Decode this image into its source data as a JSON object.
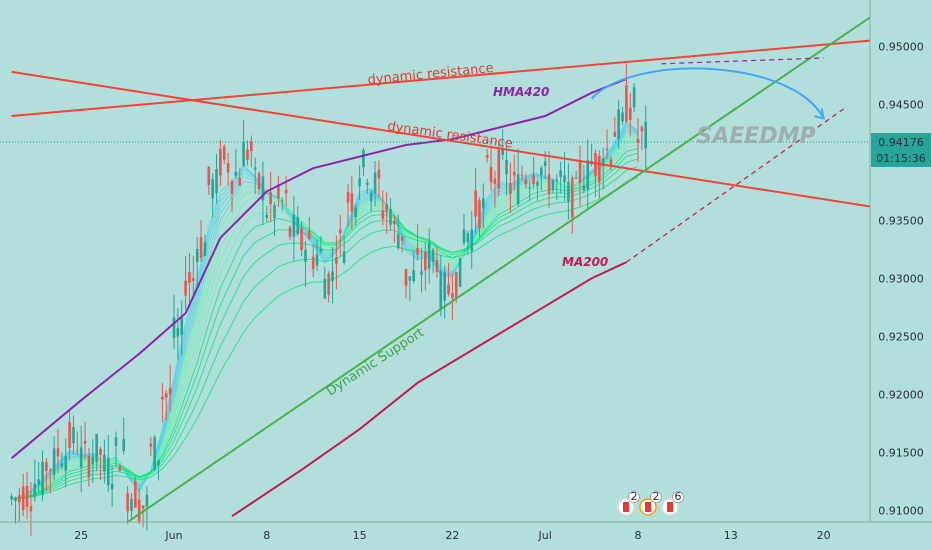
{
  "chart_data": {
    "type": "line",
    "instrument_note": "candlestick price chart with drawn trendlines",
    "y_axis": {
      "range": [
        0.909,
        0.954
      ],
      "ticks": [
        "0.91000",
        "0.91500",
        "0.92000",
        "0.92500",
        "0.93000",
        "0.93500",
        "0.94000",
        "0.94500",
        "0.95000"
      ],
      "tick_values": [
        0.91,
        0.915,
        0.92,
        0.925,
        0.93,
        0.935,
        0.94,
        0.945,
        0.95
      ]
    },
    "x_axis": {
      "ticks": [
        "25",
        "Jun",
        "8",
        "15",
        "22",
        "Jul",
        "8",
        "13",
        "20"
      ],
      "tick_index": [
        6,
        14,
        22,
        30,
        38,
        46,
        54,
        62,
        70
      ]
    },
    "last_price": {
      "value": 0.94176,
      "label": "0.94176",
      "countdown": "01:15:36",
      "color": "#26a69a"
    },
    "indicators": [
      {
        "name": "HMA420",
        "color": "#8e24aa",
        "points": [
          [
            0,
            0.9145
          ],
          [
            6,
            0.9195
          ],
          [
            11,
            0.9235
          ],
          [
            15,
            0.927
          ],
          [
            18,
            0.9335
          ],
          [
            22,
            0.9375
          ],
          [
            26,
            0.9395
          ],
          [
            30,
            0.9405
          ],
          [
            34,
            0.9415
          ],
          [
            38,
            0.942
          ],
          [
            42,
            0.943
          ],
          [
            46,
            0.944
          ],
          [
            50,
            0.946
          ],
          [
            53,
            0.9472
          ]
        ]
      },
      {
        "name": "MA200",
        "color": "#c2185b",
        "points": [
          [
            19,
            0.9095
          ],
          [
            25,
            0.9135
          ],
          [
            30,
            0.917
          ],
          [
            35,
            0.921
          ],
          [
            40,
            0.924
          ],
          [
            45,
            0.927
          ],
          [
            50,
            0.93
          ],
          [
            53,
            0.9314
          ]
        ]
      }
    ],
    "annotations": [
      {
        "text": "dynamic resistance",
        "color": "#e53935"
      },
      {
        "text": "dynamic resistance",
        "color": "#e53935"
      },
      {
        "text": "HMA420",
        "color": "#8e24aa"
      },
      {
        "text": "MA200",
        "color": "#c2185b"
      },
      {
        "text": "Dynamic Support",
        "color": "#43a047"
      }
    ],
    "trendlines": [
      {
        "role": "resistance",
        "color": "#f44336",
        "from": [
          0,
          0.944
        ],
        "to": [
          74,
          0.9505
        ]
      },
      {
        "role": "resistance",
        "color": "#f44336",
        "from": [
          0,
          0.9478
        ],
        "to": [
          74,
          0.9362
        ]
      },
      {
        "role": "support",
        "color": "#4caf50",
        "from": [
          10,
          0.909
        ],
        "to": [
          74,
          0.9525
        ]
      }
    ],
    "projections": [
      {
        "color": "#42a5f5",
        "style": "solid-arc",
        "from": [
          50,
          0.9455
        ],
        "peak": [
          59,
          0.9485
        ],
        "to": [
          70,
          0.9438
        ]
      },
      {
        "color": "#8e24aa",
        "style": "dashed",
        "from": [
          56,
          0.9485
        ],
        "to": [
          70,
          0.949
        ]
      },
      {
        "color": "#c2185b",
        "style": "dashed",
        "from": [
          53,
          0.9314
        ],
        "to": [
          72,
          0.9448
        ]
      }
    ],
    "price_series": [
      0.911,
      0.9115,
      0.9125,
      0.914,
      0.915,
      0.916,
      0.9145,
      0.915,
      0.9135,
      0.915,
      0.9115,
      0.9105,
      0.915,
      0.92,
      0.925,
      0.93,
      0.933,
      0.938,
      0.94,
      0.939,
      0.941,
      0.938,
      0.936,
      0.9365,
      0.934,
      0.933,
      0.932,
      0.93,
      0.933,
      0.937,
      0.9395,
      0.938,
      0.936,
      0.934,
      0.93,
      0.931,
      0.932,
      0.929,
      0.93,
      0.934,
      0.936,
      0.939,
      0.9395,
      0.938,
      0.939,
      0.9395,
      0.9385,
      0.938,
      0.937,
      0.939,
      0.94,
      0.941,
      0.943,
      0.945,
      0.942
    ],
    "events": [
      {
        "label": "2",
        "flag": "CA"
      },
      {
        "label": "2",
        "flag": "CA"
      },
      {
        "label": "6",
        "flag": "CA"
      }
    ]
  },
  "watermark": "SAEEDMP"
}
